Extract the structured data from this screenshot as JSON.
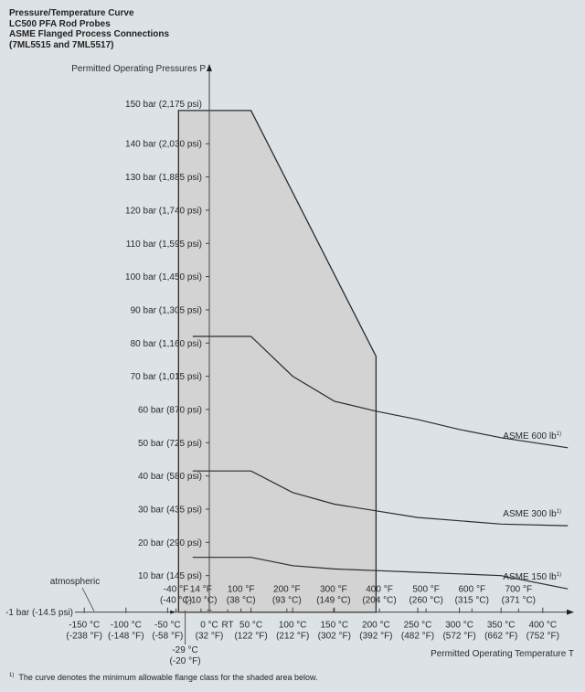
{
  "title_lines": [
    "Pressure/Temperature Curve",
    "LC500 PFA Rod Probes",
    "ASME Flanged Process Connections",
    "(7ML5515 and 7ML5517)"
  ],
  "footnote": {
    "marker": "1)",
    "text": "The curve denotes the minimum allowable flange class for the shaded area below."
  },
  "colors": {
    "background": "#dde2e6",
    "shaded_area": "#d3d3d3",
    "line": "#2b2b2b"
  },
  "chart_data": {
    "type": "line",
    "ylabel": "Permitted Operating Pressures P",
    "xlabel": "Permitted Operating Temperature T",
    "xunit": "°C",
    "yunit": "bar",
    "xlim": [
      -160,
      440
    ],
    "ylim": [
      -1,
      155
    ],
    "y_ticks": [
      {
        "value": 150,
        "label": "150 bar (2,175 psi)"
      },
      {
        "value": 140,
        "label": "140 bar (2,030 psi)"
      },
      {
        "value": 130,
        "label": "130 bar (1,885 psi)"
      },
      {
        "value": 120,
        "label": "120 bar (1,740 psi)"
      },
      {
        "value": 110,
        "label": "110 bar (1,595 psi)"
      },
      {
        "value": 100,
        "label": "100 bar (1,450 psi)"
      },
      {
        "value": 90,
        "label": "90 bar (1,305 psi)"
      },
      {
        "value": 80,
        "label": "80 bar (1,160 psi)"
      },
      {
        "value": 70,
        "label": "70 bar (1,015 psi)"
      },
      {
        "value": 60,
        "label": "60 bar (870 psi)"
      },
      {
        "value": 50,
        "label": "50 bar (725 psi)"
      },
      {
        "value": 40,
        "label": "40 bar (580 psi)"
      },
      {
        "value": 30,
        "label": "30 bar (435 psi)"
      },
      {
        "value": 20,
        "label": "20 bar (290 psi)"
      },
      {
        "value": 10,
        "label": "10 bar (145 psi)"
      }
    ],
    "baseline": {
      "value": -1,
      "label": "-1 bar (-14.5 psi)"
    },
    "atmospheric_label": "atmospheric",
    "x_ticks_celsius": [
      {
        "value": -150,
        "line1": "-150 °C",
        "line2": "(-238 °F)"
      },
      {
        "value": -100,
        "line1": "-100 °C",
        "line2": "(-148 °F)"
      },
      {
        "value": -50,
        "line1": "-50 °C",
        "line2": "(-58 °F)"
      },
      {
        "value": 0,
        "line1": "0 °C",
        "line2": "(32 °F)"
      },
      {
        "value": 50,
        "line1": "50 °C",
        "line2": "(122 °F)"
      },
      {
        "value": 100,
        "line1": "100 °C",
        "line2": "(212 °F)"
      },
      {
        "value": 150,
        "line1": "150 °C",
        "line2": "(302 °F)"
      },
      {
        "value": 200,
        "line1": "200 °C",
        "line2": "(392 °F)"
      },
      {
        "value": 250,
        "line1": "250 °C",
        "line2": "(482 °F)"
      },
      {
        "value": 300,
        "line1": "300 °C",
        "line2": "(572 °F)"
      },
      {
        "value": 350,
        "line1": "350 °C",
        "line2": "(662 °F)"
      },
      {
        "value": 400,
        "line1": "400 °C",
        "line2": "(752 °F)"
      }
    ],
    "rt_label": {
      "value": 22,
      "label": "RT"
    },
    "min_temp_marker": {
      "value": -29,
      "line1": "-29 °C",
      "line2": "(-20 °F)"
    },
    "x_ticks_fahrenheit": [
      {
        "value_c": -40,
        "line1": "-40 °F",
        "line2": "(-40 °C)"
      },
      {
        "value_c": -10,
        "line1": "14 °F",
        "line2": "(-10 °C)"
      },
      {
        "value_c": 38,
        "line1": "100 °F",
        "line2": "(38 °C)"
      },
      {
        "value_c": 93,
        "line1": "200 °F",
        "line2": "(93 °C)"
      },
      {
        "value_c": 149,
        "line1": "300 °F",
        "line2": "(149 °C)"
      },
      {
        "value_c": 204,
        "line1": "400 °F",
        "line2": "(204 °C)"
      },
      {
        "value_c": 260,
        "line1": "500 °F",
        "line2": "(260 °C)"
      },
      {
        "value_c": 315,
        "line1": "600 °F",
        "line2": "(315 °C)"
      },
      {
        "value_c": 371,
        "line1": "700 °F",
        "line2": "(371 °C)"
      }
    ],
    "shaded_region": {
      "points": [
        [
          -37,
          -1
        ],
        [
          -37,
          150
        ],
        [
          50,
          150
        ],
        [
          200,
          76
        ],
        [
          200,
          -1
        ]
      ]
    },
    "series": [
      {
        "name": "ASME 600 lb",
        "sup": "1)",
        "points": [
          [
            -20,
            82
          ],
          [
            50,
            82
          ],
          [
            100,
            70
          ],
          [
            150,
            62.5
          ],
          [
            200,
            59.5
          ],
          [
            250,
            57
          ],
          [
            300,
            54
          ],
          [
            350,
            51.5
          ],
          [
            430,
            48.5
          ]
        ]
      },
      {
        "name": "ASME 300 lb",
        "sup": "1)",
        "points": [
          [
            -20,
            41.5
          ],
          [
            50,
            41.5
          ],
          [
            100,
            35
          ],
          [
            150,
            31.5
          ],
          [
            200,
            29.5
          ],
          [
            250,
            27.5
          ],
          [
            300,
            26.5
          ],
          [
            350,
            25.5
          ],
          [
            430,
            25
          ]
        ]
      },
      {
        "name": "ASME 150 lb",
        "sup": "1)",
        "points": [
          [
            -20,
            15.5
          ],
          [
            50,
            15.5
          ],
          [
            100,
            13
          ],
          [
            150,
            12
          ],
          [
            200,
            11.5
          ],
          [
            250,
            11
          ],
          [
            300,
            10.5
          ],
          [
            350,
            10
          ],
          [
            430,
            6
          ]
        ]
      }
    ]
  }
}
